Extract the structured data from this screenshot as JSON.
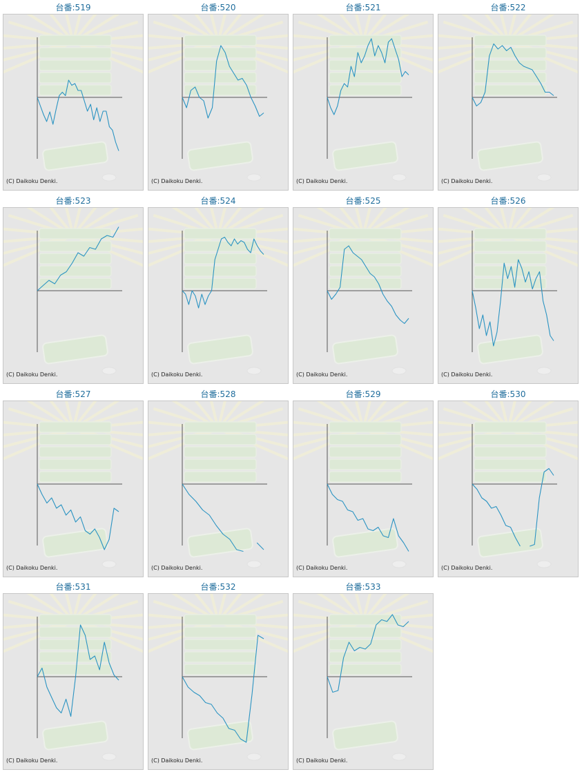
{
  "copyright": "(C) Daikoku Denki.",
  "colors": {
    "line": "#2a93c2",
    "axis": "#555555",
    "title": "#1f6d9c",
    "background": "#e6e6e6"
  },
  "chart_data": [
    {
      "type": "line",
      "title": "台番:519",
      "y": [
        0,
        -0.25,
        -0.5,
        -0.7,
        -0.42,
        -0.78,
        -0.35,
        0.05,
        0.15,
        0.05,
        0.5,
        0.35,
        0.4,
        0.2,
        0.2,
        -0.1,
        -0.4,
        -0.2,
        -0.65,
        -0.3,
        -0.7,
        -0.4,
        -0.4,
        -0.85,
        -0.95,
        -1.3,
        -1.55
      ]
    },
    {
      "type": "line",
      "title": "台番:520",
      "y": [
        0,
        -0.3,
        0.2,
        0.3,
        0.0,
        -0.1,
        -0.6,
        -0.3,
        1.05,
        1.5,
        1.3,
        0.9,
        0.7,
        0.5,
        0.55,
        0.35,
        0.0,
        -0.25,
        -0.55,
        -0.45
      ]
    },
    {
      "type": "line",
      "title": "台番:521",
      "y": [
        0,
        -0.3,
        -0.5,
        -0.25,
        0.2,
        0.4,
        0.3,
        0.9,
        0.6,
        1.3,
        1.0,
        1.2,
        1.5,
        1.7,
        1.2,
        1.5,
        1.3,
        1.0,
        1.6,
        1.7,
        1.4,
        1.1,
        0.6,
        0.75,
        0.65
      ]
    },
    {
      "type": "line",
      "title": "台番:522",
      "y": [
        0,
        -0.25,
        -0.15,
        0.15,
        1.2,
        1.55,
        1.4,
        1.5,
        1.35,
        1.45,
        1.2,
        1.0,
        0.9,
        0.85,
        0.8,
        0.6,
        0.4,
        0.15,
        0.15,
        0.05
      ]
    },
    {
      "type": "line",
      "title": "台番:523",
      "y": [
        0,
        0.15,
        0.3,
        0.2,
        0.45,
        0.55,
        0.8,
        1.1,
        1.0,
        1.25,
        1.2,
        1.5,
        1.6,
        1.55,
        1.85
      ]
    },
    {
      "type": "line",
      "title": "台番:524",
      "y": [
        0,
        -0.1,
        -0.4,
        0.0,
        -0.15,
        -0.5,
        -0.1,
        -0.4,
        -0.15,
        0.0,
        0.9,
        1.2,
        1.5,
        1.55,
        1.4,
        1.3,
        1.5,
        1.35,
        1.45,
        1.4,
        1.2,
        1.1,
        1.5,
        1.3,
        1.15,
        1.05
      ]
    },
    {
      "type": "line",
      "title": "台番:525",
      "y": [
        0,
        -0.25,
        -0.1,
        0.1,
        1.2,
        1.3,
        1.1,
        1.0,
        0.9,
        0.7,
        0.5,
        0.4,
        0.2,
        -0.1,
        -0.3,
        -0.45,
        -0.7,
        -0.85,
        -0.95,
        -0.8
      ]
    },
    {
      "type": "line",
      "title": "台番:526",
      "y": [
        0,
        -0.5,
        -1.1,
        -0.7,
        -1.3,
        -0.9,
        -1.6,
        -1.2,
        -0.3,
        0.8,
        0.35,
        0.7,
        0.1,
        0.9,
        0.65,
        0.25,
        0.55,
        0.05,
        0.35,
        0.55,
        -0.3,
        -0.7,
        -1.3,
        -1.45
      ]
    },
    {
      "type": "line",
      "title": "台番:527",
      "y": [
        0,
        -0.3,
        -0.55,
        -0.4,
        -0.7,
        -0.6,
        -0.9,
        -0.75,
        -1.1,
        -0.95,
        -1.35,
        -1.45,
        -1.3,
        -1.55,
        -1.9,
        -1.6,
        -0.7,
        -0.8
      ]
    },
    {
      "type": "line",
      "title": "台番:528",
      "y": [
        0,
        -0.3,
        -0.5,
        -0.75,
        -0.9,
        -1.2,
        -1.45,
        -1.6,
        -1.9,
        -1.95,
        null,
        -1.7,
        -1.9
      ]
    },
    {
      "type": "line",
      "title": "台番:529",
      "y": [
        0,
        -0.3,
        -0.45,
        -0.5,
        -0.75,
        -0.8,
        -1.05,
        -1.0,
        -1.3,
        -1.35,
        -1.25,
        -1.5,
        -1.55,
        -1.0,
        -1.5,
        -1.7,
        -1.95
      ]
    },
    {
      "type": "line",
      "title": "台番:530",
      "y": [
        0,
        -0.15,
        -0.4,
        -0.5,
        -0.7,
        -0.65,
        -0.9,
        -1.2,
        -1.25,
        -1.55,
        -1.8,
        null,
        -1.8,
        -1.75,
        -0.4,
        0.35,
        0.45,
        0.25
      ]
    },
    {
      "type": "line",
      "title": "台番:531",
      "y": [
        0,
        0.25,
        -0.3,
        -0.6,
        -0.9,
        -1.05,
        -0.65,
        -1.15,
        0.0,
        1.5,
        1.2,
        0.5,
        0.6,
        0.2,
        1.0,
        0.4,
        0.05,
        -0.1
      ]
    },
    {
      "type": "line",
      "title": "台番:532",
      "y": [
        0,
        -0.3,
        -0.45,
        -0.55,
        -0.75,
        -0.8,
        -1.05,
        -1.2,
        -1.5,
        -1.55,
        -1.8,
        -1.9,
        -0.5,
        1.2,
        1.1
      ]
    },
    {
      "type": "line",
      "title": "台番:533",
      "y": [
        0,
        -0.45,
        -0.4,
        0.55,
        1.0,
        0.75,
        0.85,
        0.8,
        0.95,
        1.5,
        1.65,
        1.6,
        1.8,
        1.5,
        1.45,
        1.6
      ]
    }
  ]
}
